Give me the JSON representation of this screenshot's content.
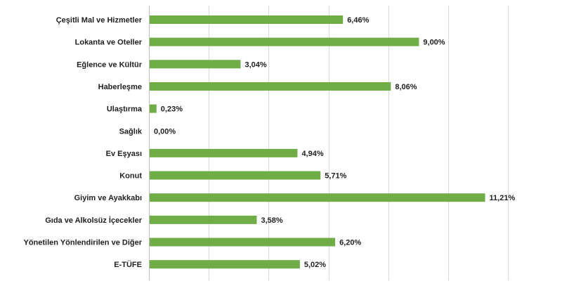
{
  "chart_data": {
    "type": "bar",
    "orientation": "horizontal",
    "categories": [
      "Çeşitli Mal ve Hizmetler",
      "Lokanta ve Oteller",
      "Eğlence ve Kültür",
      "Haberleşme",
      "Ulaştırma",
      "Sağlık",
      "Ev Eşyası",
      "Konut",
      "Giyim ve Ayakkabı",
      "Gıda ve Alkolsüz İçecekler",
      "Yönetilen Yönlendirilen ve Diğer",
      "E-TÜFE"
    ],
    "values": [
      6.46,
      9.0,
      3.04,
      8.06,
      0.23,
      0.0,
      4.94,
      5.71,
      11.21,
      3.58,
      6.2,
      5.02
    ],
    "value_labels": [
      "6,46%",
      "9,00%",
      "3,04%",
      "8,06%",
      "0,23%",
      "0,00%",
      "4,94%",
      "5,71%",
      "11,21%",
      "3,58%",
      "6,20%",
      "5,02%"
    ],
    "xlim": [
      0,
      12
    ],
    "grid": true,
    "bar_color": "#70ad47",
    "title": "",
    "xlabel": "",
    "ylabel": ""
  }
}
